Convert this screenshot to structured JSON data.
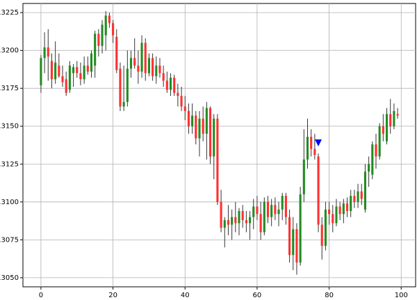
{
  "chart_data": {
    "type": "candlestick",
    "x": [
      0,
      1,
      2,
      3,
      4,
      5,
      6,
      7,
      8,
      9,
      10,
      11,
      12,
      13,
      14,
      15,
      16,
      17,
      18,
      19,
      20,
      21,
      22,
      23,
      24,
      25,
      26,
      27,
      28,
      29,
      30,
      31,
      32,
      33,
      34,
      35,
      36,
      37,
      38,
      39,
      40,
      41,
      42,
      43,
      44,
      45,
      46,
      47,
      48,
      49,
      50,
      51,
      52,
      53,
      54,
      55,
      56,
      57,
      58,
      59,
      60,
      61,
      62,
      63,
      64,
      65,
      66,
      67,
      68,
      69,
      70,
      71,
      72,
      73,
      74,
      75,
      76,
      77,
      78,
      79,
      80,
      81,
      82,
      83,
      84,
      85,
      86,
      87,
      88,
      89,
      90,
      91,
      92,
      93,
      94,
      95,
      96,
      97,
      98,
      99
    ],
    "open": [
      1.3177,
      1.3195,
      1.3202,
      1.3193,
      1.3181,
      1.319,
      1.3183,
      1.3181,
      1.3174,
      1.3185,
      1.3189,
      1.3185,
      1.3181,
      1.319,
      1.3186,
      1.319,
      1.3211,
      1.3203,
      1.321,
      1.3223,
      1.3218,
      1.3209,
      1.3188,
      1.3163,
      1.3166,
      1.3188,
      1.3195,
      1.319,
      1.3186,
      1.3205,
      1.3185,
      1.3195,
      1.3183,
      1.319,
      1.3185,
      1.318,
      1.3174,
      1.3182,
      1.3172,
      1.317,
      1.3163,
      1.316,
      1.315,
      1.3157,
      1.3142,
      1.3155,
      1.3145,
      1.3162,
      1.313,
      1.3155,
      1.31,
      1.3083,
      1.3088,
      1.3085,
      1.309,
      1.3086,
      1.3094,
      1.3088,
      1.3086,
      1.309,
      1.3097,
      1.3092,
      1.308,
      1.31,
      1.309,
      1.3098,
      1.3092,
      1.3095,
      1.3104,
      1.309,
      1.3065,
      1.3082,
      1.306,
      1.3105,
      1.3128,
      1.3143,
      1.3135,
      1.313,
      1.3085,
      1.3071,
      1.3095,
      1.3092,
      1.3086,
      1.3097,
      1.3092,
      1.3099,
      1.3094,
      1.3104,
      1.31,
      1.3107,
      1.3095,
      1.312,
      1.3118,
      1.3138,
      1.313,
      1.315,
      1.314,
      1.3158,
      1.315,
      1.3158
    ],
    "high": [
      1.3197,
      1.3212,
      1.3214,
      1.3198,
      1.3206,
      1.3198,
      1.319,
      1.3186,
      1.3193,
      1.3191,
      1.3193,
      1.3192,
      1.3196,
      1.3196,
      1.32,
      1.3213,
      1.3214,
      1.322,
      1.3226,
      1.3225,
      1.322,
      1.3214,
      1.3192,
      1.319,
      1.32,
      1.32,
      1.3208,
      1.32,
      1.321,
      1.3208,
      1.3198,
      1.3198,
      1.3196,
      1.3195,
      1.319,
      1.3186,
      1.3185,
      1.3184,
      1.3178,
      1.3176,
      1.317,
      1.3165,
      1.3165,
      1.316,
      1.316,
      1.3163,
      1.3166,
      1.3163,
      1.3158,
      1.3158,
      1.3108,
      1.309,
      1.3098,
      1.3095,
      1.31,
      1.3096,
      1.3098,
      1.3094,
      1.3094,
      1.3102,
      1.3104,
      1.31,
      1.3103,
      1.3104,
      1.3102,
      1.3103,
      1.31,
      1.3106,
      1.3106,
      1.3095,
      1.309,
      1.3086,
      1.311,
      1.3148,
      1.3155,
      1.3148,
      1.3145,
      1.3132,
      1.309,
      1.31,
      1.31,
      1.3098,
      1.3102,
      1.31,
      1.3102,
      1.3103,
      1.3108,
      1.3108,
      1.3112,
      1.3112,
      1.3125,
      1.313,
      1.314,
      1.3145,
      1.3152,
      1.3158,
      1.3162,
      1.3168,
      1.3165,
      1.3162
    ],
    "low": [
      1.3172,
      1.3185,
      1.318,
      1.3175,
      1.3178,
      1.3182,
      1.3176,
      1.317,
      1.3172,
      1.3176,
      1.3182,
      1.3177,
      1.3178,
      1.3184,
      1.3182,
      1.3182,
      1.3196,
      1.3198,
      1.32,
      1.3215,
      1.3205,
      1.3185,
      1.316,
      1.316,
      1.3163,
      1.3182,
      1.3188,
      1.3178,
      1.3182,
      1.318,
      1.3183,
      1.318,
      1.3178,
      1.3182,
      1.3176,
      1.3172,
      1.317,
      1.317,
      1.3163,
      1.316,
      1.3154,
      1.3145,
      1.3145,
      1.3138,
      1.313,
      1.314,
      1.3128,
      1.3125,
      1.3115,
      1.3098,
      1.308,
      1.307,
      1.3078,
      1.3075,
      1.308,
      1.3078,
      1.3083,
      1.308,
      1.3075,
      1.3082,
      1.3088,
      1.3075,
      1.3078,
      1.3086,
      1.3084,
      1.3088,
      1.3084,
      1.3088,
      1.3085,
      1.306,
      1.3055,
      1.3052,
      1.3058,
      1.31,
      1.3122,
      1.313,
      1.3128,
      1.308,
      1.3062,
      1.3068,
      1.3085,
      1.308,
      1.3084,
      1.3088,
      1.3086,
      1.309,
      1.309,
      1.3096,
      1.3096,
      1.3098,
      1.3093,
      1.311,
      1.3115,
      1.3122,
      1.3128,
      1.314,
      1.3138,
      1.3145,
      1.3148,
      1.3155
    ],
    "close": [
      1.3195,
      1.3202,
      1.3196,
      1.3181,
      1.3192,
      1.3183,
      1.3179,
      1.3172,
      1.319,
      1.3189,
      1.3185,
      1.3181,
      1.319,
      1.3186,
      1.3198,
      1.3211,
      1.3203,
      1.3217,
      1.3223,
      1.3218,
      1.321,
      1.3187,
      1.3163,
      1.3166,
      1.3188,
      1.3195,
      1.319,
      1.3186,
      1.3205,
      1.3185,
      1.3195,
      1.3183,
      1.319,
      1.3185,
      1.318,
      1.3174,
      1.3182,
      1.3172,
      1.317,
      1.3163,
      1.316,
      1.315,
      1.3157,
      1.3142,
      1.3155,
      1.3145,
      1.3162,
      1.313,
      1.3155,
      1.31,
      1.3083,
      1.3088,
      1.3085,
      1.309,
      1.3086,
      1.3094,
      1.3088,
      1.3086,
      1.309,
      1.3097,
      1.3092,
      1.308,
      1.31,
      1.309,
      1.3098,
      1.3092,
      1.3095,
      1.3104,
      1.309,
      1.3065,
      1.3082,
      1.306,
      1.3105,
      1.3128,
      1.3143,
      1.3135,
      1.3131,
      1.3085,
      1.3071,
      1.3095,
      1.3092,
      1.3086,
      1.3097,
      1.3092,
      1.3099,
      1.3094,
      1.3104,
      1.31,
      1.3107,
      1.3102,
      1.312,
      1.3125,
      1.3138,
      1.313,
      1.315,
      1.3145,
      1.3158,
      1.315,
      1.316,
      1.3157
    ],
    "up_color": "#228b22",
    "down_color": "#ff3030",
    "wick_color": "#333333",
    "markers": [
      {
        "x": 77,
        "y": 1.3139,
        "color": "#0000ff"
      }
    ],
    "xlim": [
      -5,
      104
    ],
    "xticks": [
      0,
      20,
      40,
      60,
      80,
      100
    ],
    "ylim": [
      1.3044,
      1.3231
    ],
    "yticks": [
      {
        "value": 1.305,
        "label": "1.3050"
      },
      1.3075,
      {
        "value": 1.31,
        "label": "1.3100"
      },
      1.3125,
      {
        "value": 1.315,
        "label": "1.3150"
      },
      1.3175,
      {
        "value": 1.32,
        "label": "1.3200"
      },
      1.3225
    ],
    "grid": true
  }
}
